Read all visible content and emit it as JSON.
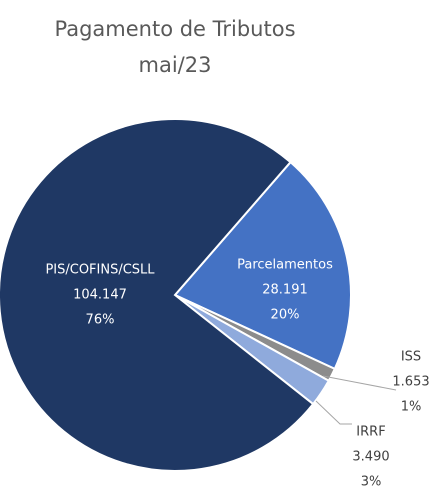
{
  "chart_data": {
    "type": "pie",
    "title": "Pagamento de Tributos",
    "subtitle": "mai/23",
    "categories": [
      "Parcelamentos",
      "ISS",
      "IRRF",
      "PIS/COFINS/CSLL"
    ],
    "values": [
      28191,
      1653,
      3490,
      104147
    ],
    "value_labels": [
      "28.191",
      "1.653",
      "3.490",
      "104.147"
    ],
    "percentages": [
      20,
      1,
      3,
      76
    ],
    "percentage_labels": [
      "20%",
      "1%",
      "3%",
      "76%"
    ],
    "colors": [
      "#4472c4",
      "#8c8c8c",
      "#8faadc",
      "#1f3864"
    ]
  }
}
